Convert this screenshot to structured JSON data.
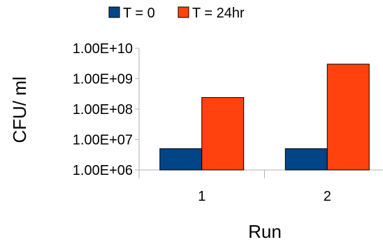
{
  "chart_data": {
    "type": "bar",
    "categories": [
      "1",
      "2"
    ],
    "series": [
      {
        "name": "T = 0",
        "values": [
          5000000,
          5000000
        ],
        "color": "#004586"
      },
      {
        "name": "T = 24hr",
        "values": [
          240000000,
          3000000000
        ],
        "color": "#FF420E"
      }
    ],
    "xlabel": "Run",
    "ylabel": "CFU/ ml",
    "y_scale": "log",
    "ylim": [
      1000000,
      10000000000
    ],
    "y_tick_labels": [
      "1.00E+06",
      "1.00E+07",
      "1.00E+08",
      "1.00E+09",
      "1.00E+10"
    ],
    "grid": false,
    "legend_position": "top"
  }
}
